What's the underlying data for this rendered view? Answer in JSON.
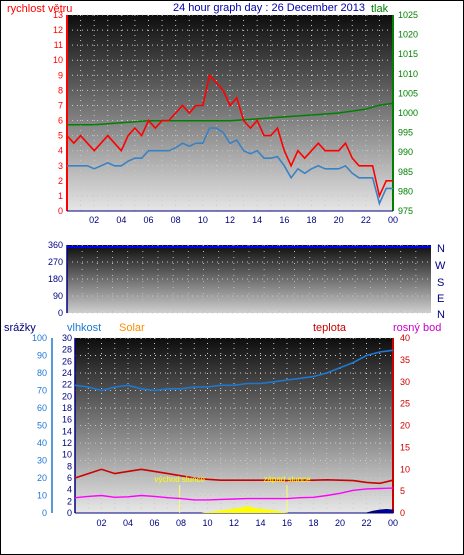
{
  "header": {
    "title": "24 hour graph day : 26 December 2013",
    "left_label": "rychlost větru",
    "right_label": "tlak"
  },
  "colors": {
    "wind": "#ff0000",
    "wind_avg": "#3b82c4",
    "pressure": "#008000",
    "wind_dir": "#0000ff",
    "humidity": "#1e78d2",
    "solar": "#ffff00",
    "temperature": "#cc0000",
    "dewpoint": "#ff00ff",
    "rain": "#0000aa",
    "title": "#0000aa",
    "solar_label": "#ff8c00",
    "axis_left": "#ff0000",
    "axis_right": "#008000"
  },
  "middle": {
    "dir_labels": [
      "N",
      "W",
      "S",
      "E",
      "N"
    ]
  },
  "bottom_headers": {
    "rain": "srážky",
    "humidity": "vlhkost",
    "solar": "Solar",
    "temperature": "teplota",
    "dewpoint": "rosný bod"
  },
  "chart_data": [
    {
      "type": "line",
      "title": "24 hour graph day : 26 December 2013",
      "x_ticks": [
        "02",
        "04",
        "06",
        "08",
        "10",
        "12",
        "14",
        "16",
        "18",
        "20",
        "22",
        "00"
      ],
      "y_left": {
        "label": "rychlost větru",
        "range": [
          0,
          13
        ],
        "ticks": [
          "0",
          "1",
          "2",
          "3",
          "4",
          "5",
          "6",
          "7",
          "8",
          "9",
          "10",
          "11",
          "12",
          "13"
        ]
      },
      "y_right": {
        "label": "tlak",
        "range": [
          975,
          1025
        ],
        "ticks": [
          "975",
          "980",
          "985",
          "990",
          "995",
          "1000",
          "1005",
          "1010",
          "1015",
          "1020",
          "1025"
        ]
      },
      "series": [
        {
          "name": "wind_gust",
          "axis": "left",
          "x": [
            0,
            0.5,
            1,
            1.5,
            2,
            2.5,
            3,
            3.5,
            4,
            4.5,
            5,
            5.5,
            6,
            6.5,
            7,
            7.5,
            8,
            8.5,
            9,
            9.5,
            10,
            10.5,
            11,
            11.5,
            12,
            12.5,
            13,
            13.5,
            14,
            14.5,
            15,
            15.5,
            16,
            16.5,
            17,
            17.5,
            18,
            18.5,
            19,
            19.5,
            20,
            20.5,
            21,
            21.5,
            22,
            22.5,
            23,
            23.5,
            24
          ],
          "y": [
            5,
            4.5,
            5,
            4.5,
            4,
            4.5,
            5,
            4.5,
            4,
            5,
            5.5,
            5,
            6,
            5.5,
            6,
            6,
            6.5,
            7,
            6.5,
            7,
            7,
            9,
            8.5,
            8,
            7,
            7.5,
            6,
            5.5,
            6,
            5,
            5,
            5.5,
            4,
            3,
            4,
            3.5,
            4,
            4.5,
            4,
            4,
            4,
            4.5,
            3.5,
            3,
            3,
            3,
            1,
            2,
            2
          ]
        },
        {
          "name": "wind_avg",
          "axis": "left",
          "x": [
            0,
            0.5,
            1,
            1.5,
            2,
            2.5,
            3,
            3.5,
            4,
            4.5,
            5,
            5.5,
            6,
            6.5,
            7,
            7.5,
            8,
            8.5,
            9,
            9.5,
            10,
            10.5,
            11,
            11.5,
            12,
            12.5,
            13,
            13.5,
            14,
            14.5,
            15,
            15.5,
            16,
            16.5,
            17,
            17.5,
            18,
            18.5,
            19,
            19.5,
            20,
            20.5,
            21,
            21.5,
            22,
            22.5,
            23,
            23.5,
            24
          ],
          "y": [
            3,
            3,
            3,
            3,
            2.8,
            3,
            3.2,
            3,
            3,
            3.3,
            3.5,
            3.5,
            4,
            4,
            4,
            4,
            4.2,
            4.5,
            4.3,
            4.5,
            4.5,
            5.5,
            5.5,
            5.2,
            4.5,
            4.7,
            4,
            3.8,
            4,
            3.5,
            3.5,
            3.6,
            3,
            2.2,
            2.8,
            2.5,
            2.8,
            3,
            2.8,
            2.8,
            2.8,
            3,
            2.5,
            2.2,
            2.2,
            2.2,
            0.5,
            1.5,
            1.5
          ]
        },
        {
          "name": "pressure",
          "axis": "right",
          "x": [
            0,
            2,
            4,
            6,
            8,
            10,
            12,
            14,
            16,
            18,
            20,
            22,
            23,
            24
          ],
          "y": [
            997,
            997,
            997.5,
            998,
            998,
            998,
            998,
            998.5,
            999,
            999.5,
            1000,
            1001,
            1002,
            1002.5
          ]
        }
      ]
    },
    {
      "type": "scatter",
      "y_range": [
        0,
        360
      ],
      "y_ticks": [
        "0",
        "90",
        "180",
        "270",
        "360"
      ],
      "x_ticks": [],
      "series": [
        {
          "name": "wind_direction",
          "x": [
            0,
            2,
            4,
            6,
            8,
            10,
            12,
            14,
            16,
            18,
            20,
            22,
            24
          ],
          "y": [
            350,
            350,
            350,
            350,
            350,
            350,
            350,
            350,
            350,
            350,
            350,
            350,
            350
          ]
        }
      ]
    },
    {
      "type": "line",
      "x_ticks": [
        "02",
        "04",
        "06",
        "08",
        "10",
        "12",
        "14",
        "16",
        "18",
        "20",
        "22",
        "00"
      ],
      "axes": {
        "rain": {
          "range": [
            0,
            30
          ],
          "ticks": [
            "0",
            "2",
            "4",
            "6",
            "8",
            "10",
            "12",
            "14",
            "16",
            "18",
            "20",
            "22",
            "24",
            "26",
            "28",
            "30"
          ]
        },
        "humidity": {
          "range": [
            0,
            100
          ],
          "ticks": [
            "0",
            "10",
            "20",
            "30",
            "40",
            "50",
            "60",
            "70",
            "80",
            "90",
            "100"
          ]
        },
        "temperature": {
          "range": [
            0,
            40
          ],
          "ticks": [
            "0",
            "5",
            "10",
            "15",
            "20",
            "25",
            "30",
            "35",
            "40"
          ]
        }
      },
      "annotations": [
        {
          "text": "východ slunce",
          "x": 7.9
        },
        {
          "text": "západ slunce",
          "x": 16.0
        }
      ],
      "series": [
        {
          "name": "humidity",
          "axis": "humidity",
          "x": [
            0,
            1,
            2,
            3,
            4,
            5,
            6,
            7,
            8,
            9,
            10,
            11,
            12,
            13,
            14,
            15,
            16,
            17,
            18,
            19,
            20,
            21,
            22,
            23,
            24
          ],
          "y": [
            73,
            72,
            70,
            72,
            73,
            71,
            70,
            71,
            71,
            72,
            72,
            73,
            73,
            74,
            74,
            75,
            76,
            77,
            78,
            80,
            83,
            86,
            90,
            92,
            93
          ]
        },
        {
          "name": "temperature",
          "axis": "temperature",
          "x": [
            0,
            1,
            2,
            3,
            4,
            5,
            6,
            7,
            8,
            9,
            10,
            11,
            12,
            13,
            14,
            15,
            16,
            17,
            18,
            19,
            20,
            21,
            22,
            23,
            24
          ],
          "y": [
            8,
            9,
            10,
            9,
            9.5,
            10,
            9.5,
            9,
            8.5,
            8,
            7.7,
            7.5,
            7.5,
            7.5,
            7.5,
            7.5,
            7.4,
            7.5,
            7.5,
            7.6,
            7.5,
            7.4,
            7,
            6.8,
            7.5
          ]
        },
        {
          "name": "dewpoint",
          "axis": "temperature",
          "x": [
            0,
            1,
            2,
            3,
            4,
            5,
            6,
            7,
            8,
            9,
            10,
            11,
            12,
            13,
            14,
            15,
            16,
            17,
            18,
            19,
            20,
            21,
            22,
            23,
            24
          ],
          "y": [
            3.5,
            3.8,
            4,
            3.6,
            3.7,
            4,
            3.8,
            3.5,
            3.3,
            3,
            3,
            3.1,
            3.2,
            3.3,
            3.3,
            3.3,
            3.3,
            3.5,
            3.6,
            4,
            4.5,
            5.2,
            5.5,
            5.6,
            5.7
          ]
        },
        {
          "name": "solar",
          "axis": "humidity",
          "x": [
            9.5,
            10.5,
            11.5,
            12.5,
            13,
            13.5,
            14.5,
            15.5,
            16
          ],
          "y": [
            0,
            1,
            2,
            3,
            4,
            3,
            2,
            1,
            0
          ]
        },
        {
          "name": "rain",
          "axis": "rain",
          "x": [
            22,
            22.5,
            23,
            23.5,
            24
          ],
          "y": [
            0,
            0.3,
            0.5,
            0.6,
            0.5
          ]
        }
      ]
    }
  ]
}
